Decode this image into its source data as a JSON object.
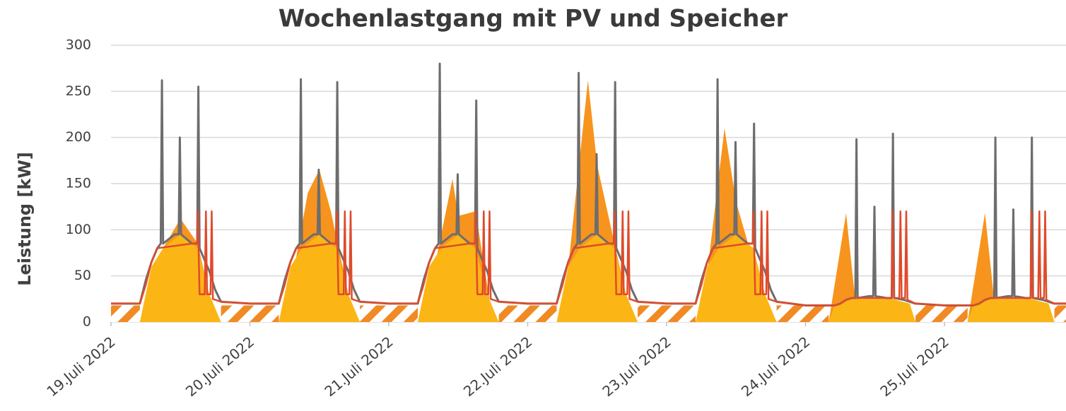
{
  "chart_data": {
    "type": "line",
    "title": "Wochenlastgang mit PV und Speicher",
    "y_label": "Leistung [kW]",
    "xlim": [
      0,
      165
    ],
    "ylim": [
      0,
      300
    ],
    "yticks": [
      0,
      50,
      100,
      150,
      200,
      250,
      300
    ],
    "xticks": [
      {
        "value": 0,
        "label": "19.Juli 2022"
      },
      {
        "value": 24,
        "label": "20.Juli 2022"
      },
      {
        "value": 48,
        "label": "21.Juli 2022"
      },
      {
        "value": 72,
        "label": "22.Juli 2022"
      },
      {
        "value": 96,
        "label": "23.Juli 2022"
      },
      {
        "value": 120,
        "label": "24.Juli 2022"
      },
      {
        "value": 144,
        "label": "25.Juli 2022"
      }
    ],
    "grid": true,
    "series": [
      {
        "kind": "area",
        "pattern": "hatch",
        "color": "#f08a24",
        "x": [
          0,
          5,
          5,
          19,
          19,
          29,
          29,
          43,
          43,
          53,
          53,
          67,
          67,
          77,
          77,
          91,
          91,
          101,
          101,
          115,
          115,
          124,
          124,
          139,
          139,
          148,
          148,
          163,
          163,
          165
        ],
        "values": [
          18,
          18,
          0,
          0,
          18,
          18,
          0,
          0,
          18,
          18,
          0,
          0,
          18,
          18,
          0,
          0,
          18,
          18,
          0,
          0,
          18,
          18,
          0,
          0,
          18,
          18,
          0,
          0,
          18,
          18
        ]
      },
      {
        "kind": "area",
        "color": "#f7941d",
        "x": [
          6,
          9,
          12,
          15,
          18,
          30,
          34,
          36,
          38,
          42,
          54,
          59,
          60,
          63,
          66,
          78,
          82.4,
          84,
          90,
          102,
          106,
          108,
          114,
          124,
          127,
          129,
          148,
          151,
          153
        ],
        "values": [
          0,
          80,
          112,
          85,
          0,
          0,
          140,
          165,
          120,
          0,
          0,
          155,
          115,
          120,
          0,
          0,
          262,
          170,
          0,
          0,
          210,
          130,
          0,
          0,
          118,
          0,
          0,
          118,
          0
        ]
      },
      {
        "kind": "area",
        "color": "#fbb615",
        "x": [
          5,
          7,
          9,
          12,
          15,
          17,
          19,
          29,
          31,
          33,
          36,
          39,
          41,
          43,
          53,
          55,
          57,
          60,
          63,
          65,
          67,
          77,
          79,
          81,
          84,
          87,
          89,
          91,
          101,
          103,
          105,
          108,
          111,
          113,
          115,
          124,
          125,
          127,
          135,
          138,
          139,
          148,
          149,
          151,
          159,
          162,
          163
        ],
        "values": [
          0,
          60,
          80,
          95,
          80,
          30,
          0,
          0,
          60,
          80,
          95,
          80,
          30,
          0,
          0,
          60,
          80,
          95,
          80,
          30,
          0,
          0,
          60,
          80,
          95,
          80,
          30,
          0,
          0,
          60,
          80,
          95,
          80,
          30,
          0,
          0,
          18,
          25,
          25,
          20,
          0,
          0,
          18,
          25,
          25,
          20,
          0
        ]
      },
      {
        "kind": "line",
        "color": "#6d6d6d",
        "width": 3,
        "x": [
          0,
          5,
          6,
          7,
          8,
          8.6,
          8.8,
          9,
          11,
          11.7,
          11.9,
          12.1,
          14,
          14.9,
          15.1,
          15.3,
          17,
          18,
          19,
          24,
          29,
          30,
          31,
          32,
          32.6,
          32.8,
          33,
          35,
          35.7,
          35.9,
          36.1,
          38,
          38.9,
          39.1,
          39.3,
          41,
          42,
          43,
          48,
          53,
          54,
          55,
          56,
          56.6,
          56.8,
          57,
          59,
          59.7,
          59.9,
          60.1,
          62,
          62.9,
          63.1,
          63.3,
          65,
          66,
          67,
          72,
          77,
          78,
          79,
          80,
          80.6,
          80.8,
          81,
          83,
          83.7,
          83.9,
          84.1,
          86,
          86.9,
          87.1,
          87.3,
          89,
          90,
          91,
          96,
          101,
          102,
          103,
          104,
          104.6,
          104.8,
          105,
          107,
          107.7,
          107.9,
          108.1,
          110,
          110.9,
          111.1,
          111.3,
          113,
          114,
          115,
          120,
          125,
          126,
          127,
          128,
          128.6,
          128.8,
          129,
          131,
          131.7,
          131.9,
          132.1,
          134,
          134.9,
          135.1,
          135.3,
          137,
          138,
          139,
          144,
          149,
          150,
          151,
          152,
          152.6,
          152.8,
          153,
          155,
          155.7,
          155.9,
          156.1,
          158,
          158.9,
          159.1,
          159.3,
          161,
          162,
          163,
          165
        ],
        "values": [
          20,
          20,
          45,
          65,
          80,
          85,
          262,
          85,
          95,
          95,
          200,
          95,
          85,
          85,
          255,
          80,
          55,
          35,
          22,
          20,
          20,
          45,
          65,
          80,
          85,
          263,
          85,
          95,
          95,
          165,
          95,
          85,
          85,
          260,
          80,
          55,
          35,
          22,
          20,
          20,
          45,
          65,
          80,
          85,
          280,
          85,
          95,
          95,
          160,
          95,
          85,
          85,
          240,
          80,
          55,
          35,
          22,
          20,
          20,
          45,
          65,
          80,
          85,
          270,
          85,
          95,
          95,
          182,
          95,
          85,
          85,
          260,
          80,
          55,
          35,
          22,
          20,
          20,
          45,
          65,
          80,
          85,
          263,
          85,
          95,
          95,
          195,
          95,
          85,
          85,
          215,
          80,
          55,
          35,
          22,
          18,
          18,
          20,
          24,
          26,
          26,
          198,
          26,
          28,
          28,
          125,
          28,
          26,
          26,
          204,
          26,
          24,
          22,
          20,
          18,
          18,
          20,
          24,
          26,
          26,
          200,
          26,
          28,
          28,
          122,
          28,
          26,
          26,
          200,
          26,
          24,
          22,
          20,
          20
        ]
      },
      {
        "kind": "line",
        "color": "#e04a2b",
        "width": 2.5,
        "x": [
          0,
          5,
          6,
          7,
          8,
          14,
          14.9,
          15,
          15.3,
          16.2,
          16.4,
          16.6,
          17.2,
          17.4,
          17.6,
          19,
          24,
          29,
          30,
          31,
          32,
          38,
          38.9,
          39,
          39.3,
          40.2,
          40.4,
          40.6,
          41.2,
          41.4,
          41.6,
          43,
          48,
          53,
          54,
          55,
          56,
          62,
          62.9,
          63,
          63.3,
          64.2,
          64.4,
          64.6,
          65.2,
          65.4,
          65.6,
          67,
          72,
          77,
          78,
          79,
          80,
          86,
          86.9,
          87,
          87.3,
          88.2,
          88.4,
          88.6,
          89.2,
          89.4,
          89.6,
          91,
          96,
          101,
          102,
          103,
          104,
          110,
          110.9,
          111,
          111.3,
          112.2,
          112.4,
          112.6,
          113.2,
          113.4,
          113.6,
          115,
          120,
          125,
          126,
          127,
          128,
          134,
          134.9,
          135,
          135.3,
          136.2,
          136.4,
          136.6,
          137.2,
          137.4,
          137.6,
          139,
          144,
          149,
          150,
          151,
          152,
          158,
          158.9,
          159,
          159.3,
          160.2,
          160.4,
          160.6,
          161.2,
          161.4,
          161.6,
          163,
          165
        ],
        "values": [
          20,
          20,
          40,
          65,
          80,
          85,
          85,
          120,
          30,
          30,
          120,
          30,
          30,
          120,
          25,
          22,
          20,
          20,
          40,
          65,
          80,
          85,
          85,
          120,
          30,
          30,
          120,
          30,
          30,
          120,
          25,
          22,
          20,
          20,
          40,
          65,
          80,
          85,
          85,
          120,
          30,
          30,
          120,
          30,
          30,
          120,
          25,
          22,
          20,
          20,
          40,
          65,
          80,
          85,
          85,
          120,
          30,
          30,
          120,
          30,
          30,
          120,
          25,
          22,
          20,
          20,
          40,
          65,
          80,
          85,
          85,
          120,
          30,
          30,
          120,
          30,
          30,
          120,
          25,
          22,
          18,
          18,
          20,
          24,
          26,
          26,
          26,
          120,
          26,
          26,
          120,
          26,
          26,
          120,
          24,
          20,
          18,
          18,
          20,
          24,
          26,
          26,
          26,
          120,
          26,
          26,
          120,
          26,
          26,
          120,
          24,
          20,
          20
        ]
      }
    ]
  }
}
